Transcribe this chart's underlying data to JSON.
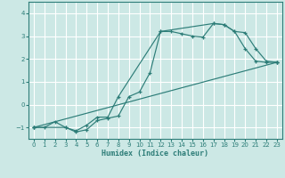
{
  "title": "",
  "xlabel": "Humidex (Indice chaleur)",
  "background_color": "#cce8e5",
  "grid_color": "#ffffff",
  "line_color": "#2d7d78",
  "xlim": [
    -0.5,
    23.5
  ],
  "ylim": [
    -1.5,
    4.5
  ],
  "yticks": [
    -1,
    0,
    1,
    2,
    3,
    4
  ],
  "xticks": [
    0,
    1,
    2,
    3,
    4,
    5,
    6,
    7,
    8,
    9,
    10,
    11,
    12,
    13,
    14,
    15,
    16,
    17,
    18,
    19,
    20,
    21,
    22,
    23
  ],
  "line1_x": [
    0,
    1,
    2,
    3,
    4,
    5,
    6,
    7,
    8,
    9,
    10,
    11,
    12,
    13,
    14,
    15,
    16,
    17,
    18,
    19,
    20,
    21,
    22,
    23
  ],
  "line1_y": [
    -1.0,
    -1.0,
    -0.75,
    -1.0,
    -1.2,
    -1.1,
    -0.7,
    -0.6,
    -0.5,
    0.35,
    0.55,
    1.4,
    3.2,
    3.2,
    3.1,
    3.0,
    2.95,
    3.55,
    3.5,
    3.2,
    2.45,
    1.9,
    1.85,
    1.85
  ],
  "line2_x": [
    0,
    3,
    4,
    5,
    6,
    7,
    8,
    12,
    17,
    18,
    19,
    20,
    21,
    22,
    23
  ],
  "line2_y": [
    -1.0,
    -1.0,
    -1.15,
    -0.9,
    -0.55,
    -0.55,
    0.35,
    3.2,
    3.55,
    3.5,
    3.2,
    3.15,
    2.45,
    1.9,
    1.85
  ],
  "line3_x": [
    0,
    23
  ],
  "line3_y": [
    -1.0,
    1.85
  ]
}
